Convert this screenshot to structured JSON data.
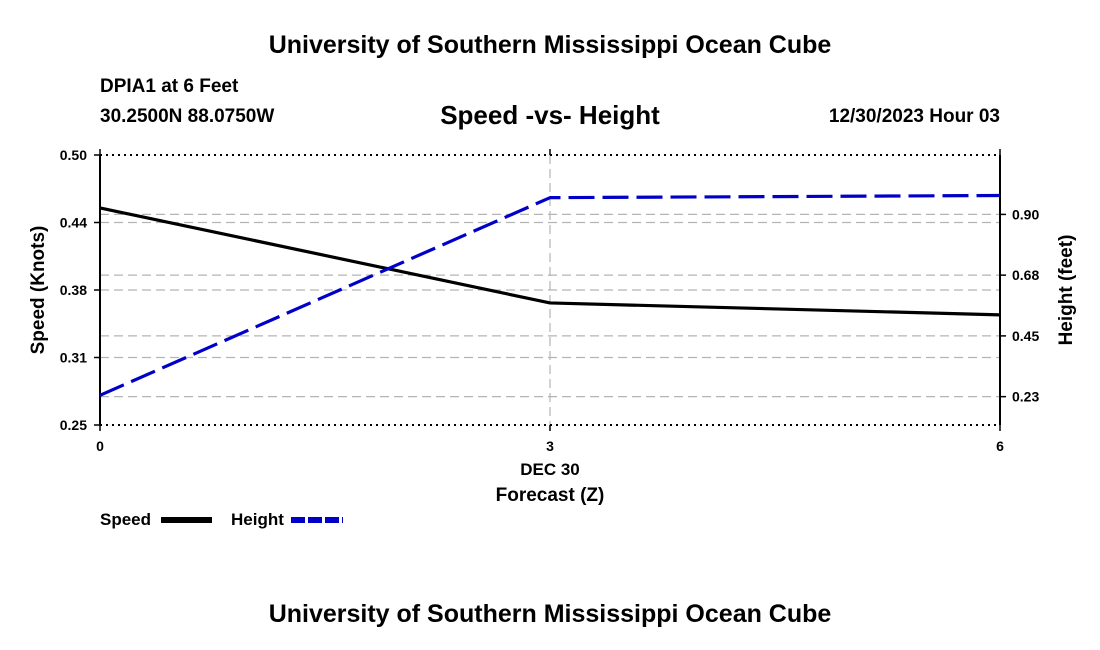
{
  "header": {
    "title_top": "University of Southern Mississippi Ocean Cube",
    "title_bottom": "University of Southern Mississippi Ocean Cube",
    "station": "DPIA1 at 6 Feet",
    "coordinates": "30.2500N  88.0750W",
    "datetime": "12/30/2023 Hour 03"
  },
  "chart_data": {
    "type": "line",
    "title": "Speed -vs- Height",
    "xlabel": "Forecast (Z)",
    "x_date_label": "DEC 30",
    "x": [
      0,
      3,
      6
    ],
    "x_tick_labels": [
      "0",
      "3",
      "6"
    ],
    "xlim": [
      0,
      6
    ],
    "ylabel_left": "Speed (Knots)",
    "ylim_left": [
      0.25,
      0.5
    ],
    "yticks_left": [
      "0.50",
      "0.44",
      "0.38",
      "0.31",
      "0.25"
    ],
    "ylabel_right": "Height (feet)",
    "ylim_right": [
      0.12,
      1.12
    ],
    "yticks_right": [
      {
        "label": "0.90",
        "value": 0.9
      },
      {
        "label": "0.68",
        "value": 0.675
      },
      {
        "label": "0.45",
        "value": 0.45
      },
      {
        "label": "0.23",
        "value": 0.225
      }
    ],
    "grid": true,
    "series": [
      {
        "name": "Speed",
        "axis": "left",
        "color": "#000000",
        "style": "solid",
        "values": [
          0.451,
          0.363,
          0.352
        ]
      },
      {
        "name": "Height",
        "axis": "right",
        "color": "#0000c8",
        "style": "dashed",
        "values": [
          0.23,
          0.962,
          0.97
        ]
      }
    ]
  },
  "legend": {
    "speed_label": "Speed",
    "height_label": "Height"
  }
}
